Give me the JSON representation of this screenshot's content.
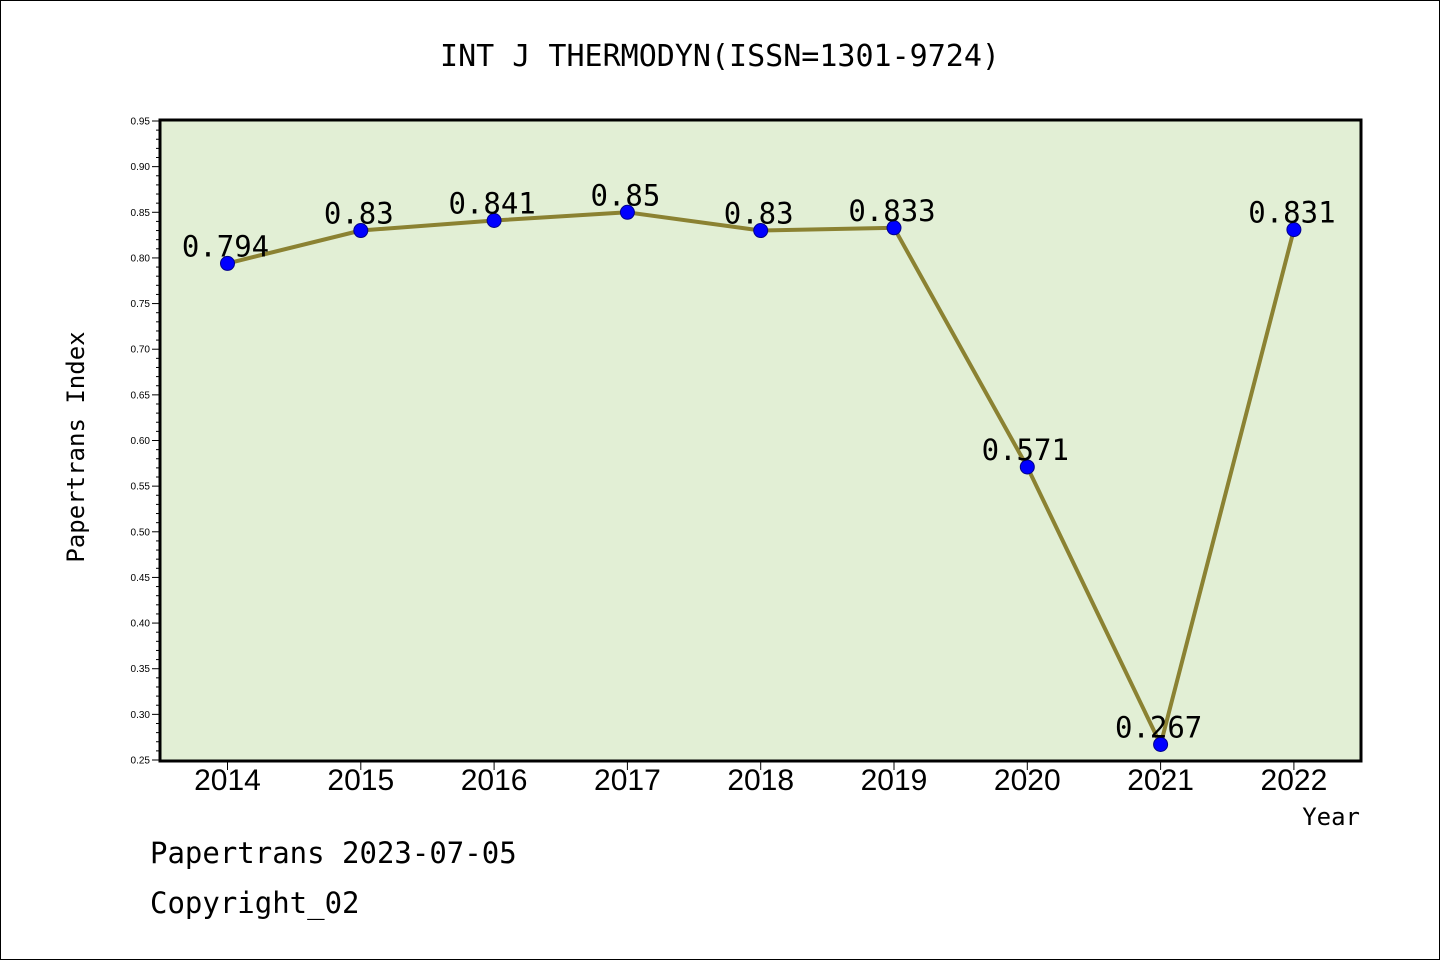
{
  "chart_data": {
    "type": "line",
    "title": "INT J THERMODYN(ISSN=1301-9724)",
    "xlabel": "Year",
    "ylabel": "Papertrans Index",
    "categories": [
      "2014",
      "2015",
      "2016",
      "2017",
      "2018",
      "2019",
      "2020",
      "2021",
      "2022"
    ],
    "values": [
      0.794,
      0.83,
      0.841,
      0.85,
      0.83,
      0.833,
      0.571,
      0.267,
      0.831
    ],
    "data_labels": [
      "0.794",
      "0.83",
      "0.841",
      "0.85",
      "0.83",
      "0.833",
      "0.571",
      "0.267",
      "0.831"
    ],
    "ylim": [
      0.25,
      0.95
    ],
    "yticks": [
      "0.25",
      "0.30",
      "0.35",
      "0.40",
      "0.45",
      "0.50",
      "0.55",
      "0.60",
      "0.65",
      "0.70",
      "0.75",
      "0.80",
      "0.85",
      "0.90",
      "0.95"
    ],
    "grid": false,
    "legend": "none",
    "colors": {
      "plot_background": "#e2efd5",
      "line": "#8b8232",
      "marker": "#0000ff"
    }
  },
  "footer": {
    "date_text": "Papertrans 2023-07-05",
    "copyright_text": "Copyright_02"
  }
}
